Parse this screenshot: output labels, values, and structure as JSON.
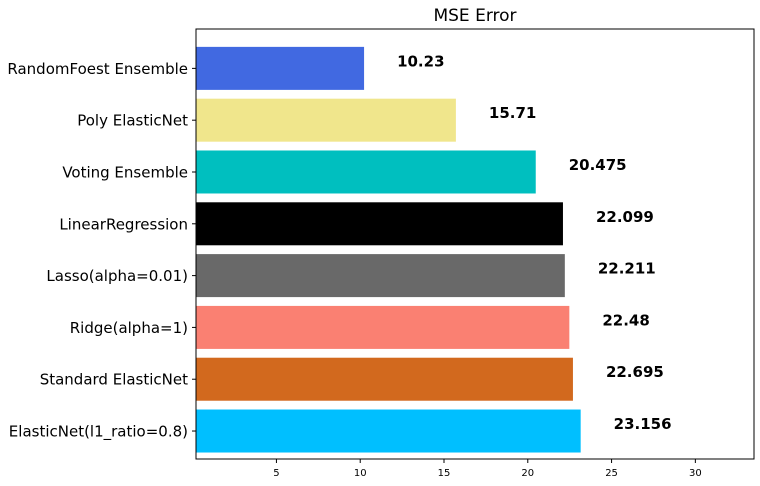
{
  "chart_data": {
    "type": "bar",
    "orientation": "horizontal",
    "title": "MSE Error",
    "xlabel": "",
    "ylabel": "",
    "categories": [
      "RandomFoest Ensemble",
      "Poly ElasticNet",
      "Voting Ensemble",
      "LinearRegression",
      "Lasso(alpha=0.01)",
      "Ridge(alpha=1)",
      "Standard ElasticNet",
      "ElasticNet(l1_ratio=0.8)"
    ],
    "values": [
      10.23,
      15.71,
      20.475,
      22.099,
      22.211,
      22.48,
      22.695,
      23.156
    ],
    "value_labels": [
      "10.23",
      "15.71",
      "20.475",
      "22.099",
      "22.211",
      "22.48",
      "22.695",
      "23.156"
    ],
    "colors": [
      "#4169e1",
      "#f0e68c",
      "#00bfbf",
      "#000000",
      "#696969",
      "#fa8072",
      "#d2691e",
      "#00bfff"
    ],
    "xlim": [
      0.2,
      33.5
    ],
    "xticks": [
      5,
      10,
      15,
      20,
      25,
      30
    ],
    "grid": false,
    "legend": "none"
  }
}
